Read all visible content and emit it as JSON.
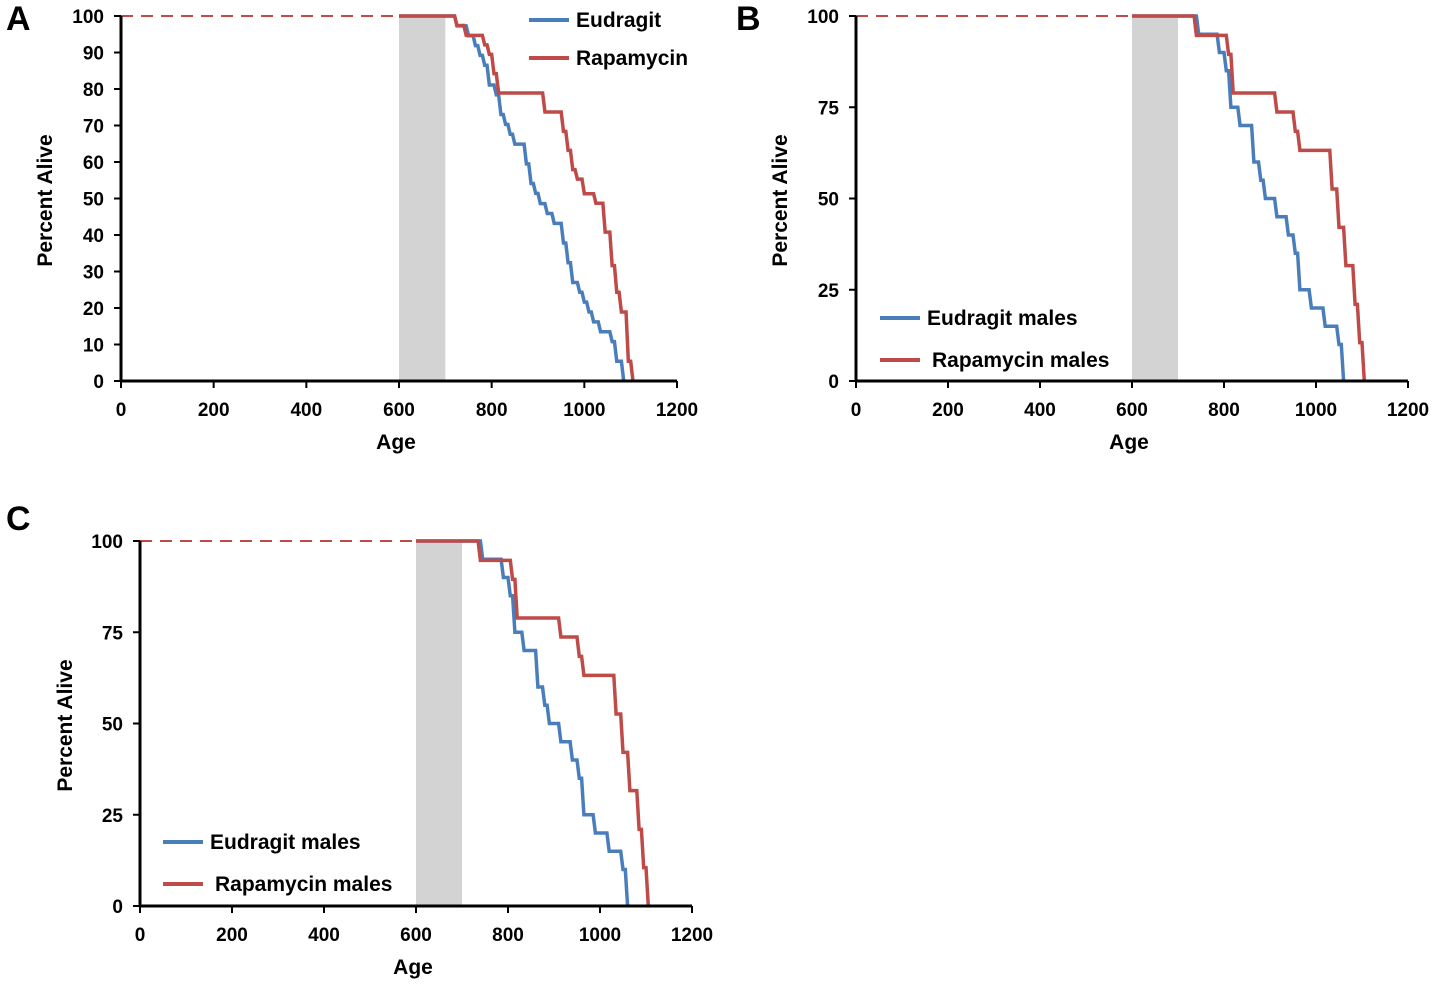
{
  "figure": {
    "colors": {
      "eudragit": "#4a7ebb",
      "rapamycin": "#be4b48",
      "shade": "#d3d3d3",
      "axis": "#000000"
    }
  },
  "chart_data": [
    {
      "panel": "A",
      "type": "line",
      "step": true,
      "xlabel": "Age",
      "ylabel": "Percent Alive",
      "xlim": [
        0,
        1200
      ],
      "ylim": [
        0,
        100
      ],
      "x_ticks": [
        0,
        200,
        400,
        600,
        800,
        1000,
        1200
      ],
      "y_ticks": [
        0,
        10,
        20,
        30,
        40,
        50,
        60,
        70,
        80,
        90,
        100
      ],
      "shaded_range": [
        600,
        700
      ],
      "baseline_value": 100,
      "legend_position": "top-right",
      "series": [
        {
          "name": "Eudragit",
          "color": "#4a7ebb",
          "points": [
            [
              0,
              100
            ],
            [
              720,
              100
            ],
            [
              725,
              97.3
            ],
            [
              745,
              97.3
            ],
            [
              750,
              94.6
            ],
            [
              760,
              94.6
            ],
            [
              765,
              91.9
            ],
            [
              770,
              91.9
            ],
            [
              775,
              89.2
            ],
            [
              780,
              89.2
            ],
            [
              785,
              86.5
            ],
            [
              790,
              86.5
            ],
            [
              795,
              81.1
            ],
            [
              805,
              81.1
            ],
            [
              810,
              78.4
            ],
            [
              815,
              78.4
            ],
            [
              820,
              73
            ],
            [
              825,
              73
            ],
            [
              830,
              70.3
            ],
            [
              835,
              70.3
            ],
            [
              840,
              67.6
            ],
            [
              845,
              67.6
            ],
            [
              850,
              64.9
            ],
            [
              870,
              64.9
            ],
            [
              875,
              59.5
            ],
            [
              880,
              59.5
            ],
            [
              885,
              54.1
            ],
            [
              890,
              54.1
            ],
            [
              895,
              51.4
            ],
            [
              900,
              51.4
            ],
            [
              905,
              48.6
            ],
            [
              915,
              48.6
            ],
            [
              920,
              45.9
            ],
            [
              930,
              45.9
            ],
            [
              935,
              43.2
            ],
            [
              950,
              43.2
            ],
            [
              955,
              37.8
            ],
            [
              960,
              37.8
            ],
            [
              965,
              32.4
            ],
            [
              970,
              32.4
            ],
            [
              975,
              27
            ],
            [
              985,
              27
            ],
            [
              990,
              24.3
            ],
            [
              995,
              24.3
            ],
            [
              1000,
              21.6
            ],
            [
              1005,
              21.6
            ],
            [
              1010,
              18.9
            ],
            [
              1015,
              18.9
            ],
            [
              1020,
              16.2
            ],
            [
              1030,
              16.2
            ],
            [
              1035,
              13.5
            ],
            [
              1055,
              13.5
            ],
            [
              1060,
              10.8
            ],
            [
              1065,
              10.8
            ],
            [
              1070,
              5.4
            ],
            [
              1080,
              5.4
            ],
            [
              1085,
              0
            ]
          ]
        },
        {
          "name": "Rapamycin",
          "color": "#be4b48",
          "points": [
            [
              0,
              100
            ],
            [
              720,
              100
            ],
            [
              725,
              97.4
            ],
            [
              740,
              97.4
            ],
            [
              745,
              94.7
            ],
            [
              780,
              94.7
            ],
            [
              785,
              92.1
            ],
            [
              790,
              92.1
            ],
            [
              795,
              89.5
            ],
            [
              800,
              89.5
            ],
            [
              805,
              84.2
            ],
            [
              810,
              84.2
            ],
            [
              815,
              78.9
            ],
            [
              910,
              78.9
            ],
            [
              915,
              73.7
            ],
            [
              950,
              73.7
            ],
            [
              955,
              68.4
            ],
            [
              960,
              68.4
            ],
            [
              965,
              63.2
            ],
            [
              970,
              63.2
            ],
            [
              975,
              57.9
            ],
            [
              980,
              57.9
            ],
            [
              985,
              55.3
            ],
            [
              995,
              55.3
            ],
            [
              1000,
              51.3
            ],
            [
              1020,
              51.3
            ],
            [
              1025,
              48.7
            ],
            [
              1040,
              48.7
            ],
            [
              1045,
              40.8
            ],
            [
              1055,
              40.8
            ],
            [
              1060,
              31.6
            ],
            [
              1065,
              31.6
            ],
            [
              1070,
              24.3
            ],
            [
              1075,
              24.3
            ],
            [
              1080,
              18.9
            ],
            [
              1090,
              18.9
            ],
            [
              1095,
              5.4
            ],
            [
              1100,
              5.4
            ],
            [
              1105,
              0
            ]
          ]
        }
      ]
    },
    {
      "panel": "B",
      "type": "line",
      "step": true,
      "xlabel": "Age",
      "ylabel": "Percent Alive",
      "xlim": [
        0,
        1200
      ],
      "ylim": [
        0,
        100
      ],
      "x_ticks": [
        0,
        200,
        400,
        600,
        800,
        1000,
        1200
      ],
      "y_ticks": [
        0,
        25,
        50,
        75,
        100
      ],
      "shaded_range": [
        600,
        700
      ],
      "baseline_value": 100,
      "legend_position": "bottom-left",
      "series": [
        {
          "name": "Eudragit males",
          "color": "#4a7ebb",
          "points": [
            [
              0,
              100
            ],
            [
              740,
              100
            ],
            [
              745,
              95
            ],
            [
              785,
              95
            ],
            [
              790,
              90
            ],
            [
              800,
              90
            ],
            [
              805,
              85
            ],
            [
              810,
              85
            ],
            [
              815,
              75
            ],
            [
              830,
              75
            ],
            [
              835,
              70
            ],
            [
              860,
              70
            ],
            [
              865,
              60
            ],
            [
              875,
              60
            ],
            [
              880,
              55
            ],
            [
              885,
              55
            ],
            [
              890,
              50
            ],
            [
              910,
              50
            ],
            [
              915,
              45
            ],
            [
              935,
              45
            ],
            [
              940,
              40
            ],
            [
              950,
              40
            ],
            [
              955,
              35
            ],
            [
              960,
              35
            ],
            [
              965,
              25
            ],
            [
              985,
              25
            ],
            [
              990,
              20
            ],
            [
              1015,
              20
            ],
            [
              1020,
              15
            ],
            [
              1045,
              15
            ],
            [
              1050,
              10
            ],
            [
              1055,
              10
            ],
            [
              1060,
              0
            ]
          ]
        },
        {
          "name": "Rapamycin males",
          "color": "#be4b48",
          "points": [
            [
              0,
              100
            ],
            [
              735,
              100
            ],
            [
              740,
              94.7
            ],
            [
              805,
              94.7
            ],
            [
              810,
              89.5
            ],
            [
              815,
              89.5
            ],
            [
              820,
              78.9
            ],
            [
              910,
              78.9
            ],
            [
              915,
              73.7
            ],
            [
              950,
              73.7
            ],
            [
              955,
              68.4
            ],
            [
              960,
              68.4
            ],
            [
              965,
              63.2
            ],
            [
              1030,
              63.2
            ],
            [
              1035,
              52.6
            ],
            [
              1045,
              52.6
            ],
            [
              1050,
              42.1
            ],
            [
              1060,
              42.1
            ],
            [
              1065,
              31.6
            ],
            [
              1080,
              31.6
            ],
            [
              1085,
              21
            ],
            [
              1090,
              21
            ],
            [
              1095,
              10.5
            ],
            [
              1100,
              10.5
            ],
            [
              1105,
              0
            ]
          ]
        }
      ]
    },
    {
      "panel": "C",
      "type": "line",
      "step": true,
      "xlabel": "Age",
      "ylabel": "Percent Alive",
      "xlim": [
        0,
        1200
      ],
      "ylim": [
        0,
        100
      ],
      "x_ticks": [
        0,
        200,
        400,
        600,
        800,
        1000,
        1200
      ],
      "y_ticks": [
        0,
        25,
        50,
        75,
        100
      ],
      "shaded_range": [
        600,
        700
      ],
      "baseline_value": 100,
      "legend_position": "bottom-left",
      "series": [
        {
          "name": "Eudragit males",
          "color": "#4a7ebb",
          "points": [
            [
              0,
              100
            ],
            [
              740,
              100
            ],
            [
              745,
              95
            ],
            [
              785,
              95
            ],
            [
              790,
              90
            ],
            [
              800,
              90
            ],
            [
              805,
              85
            ],
            [
              810,
              85
            ],
            [
              815,
              75
            ],
            [
              830,
              75
            ],
            [
              835,
              70
            ],
            [
              860,
              70
            ],
            [
              865,
              60
            ],
            [
              875,
              60
            ],
            [
              880,
              55
            ],
            [
              885,
              55
            ],
            [
              890,
              50
            ],
            [
              910,
              50
            ],
            [
              915,
              45
            ],
            [
              935,
              45
            ],
            [
              940,
              40
            ],
            [
              950,
              40
            ],
            [
              955,
              35
            ],
            [
              960,
              35
            ],
            [
              965,
              25
            ],
            [
              985,
              25
            ],
            [
              990,
              20
            ],
            [
              1015,
              20
            ],
            [
              1020,
              15
            ],
            [
              1045,
              15
            ],
            [
              1050,
              10
            ],
            [
              1055,
              10
            ],
            [
              1060,
              0
            ]
          ]
        },
        {
          "name": "Rapamycin males",
          "color": "#be4b48",
          "points": [
            [
              0,
              100
            ],
            [
              735,
              100
            ],
            [
              740,
              94.7
            ],
            [
              805,
              94.7
            ],
            [
              810,
              89.5
            ],
            [
              815,
              89.5
            ],
            [
              820,
              78.9
            ],
            [
              910,
              78.9
            ],
            [
              915,
              73.7
            ],
            [
              950,
              73.7
            ],
            [
              955,
              68.4
            ],
            [
              960,
              68.4
            ],
            [
              965,
              63.2
            ],
            [
              1030,
              63.2
            ],
            [
              1035,
              52.6
            ],
            [
              1045,
              52.6
            ],
            [
              1050,
              42.1
            ],
            [
              1060,
              42.1
            ],
            [
              1065,
              31.6
            ],
            [
              1080,
              31.6
            ],
            [
              1085,
              21
            ],
            [
              1090,
              21
            ],
            [
              1095,
              10.5
            ],
            [
              1100,
              10.5
            ],
            [
              1105,
              0
            ]
          ]
        }
      ]
    }
  ]
}
